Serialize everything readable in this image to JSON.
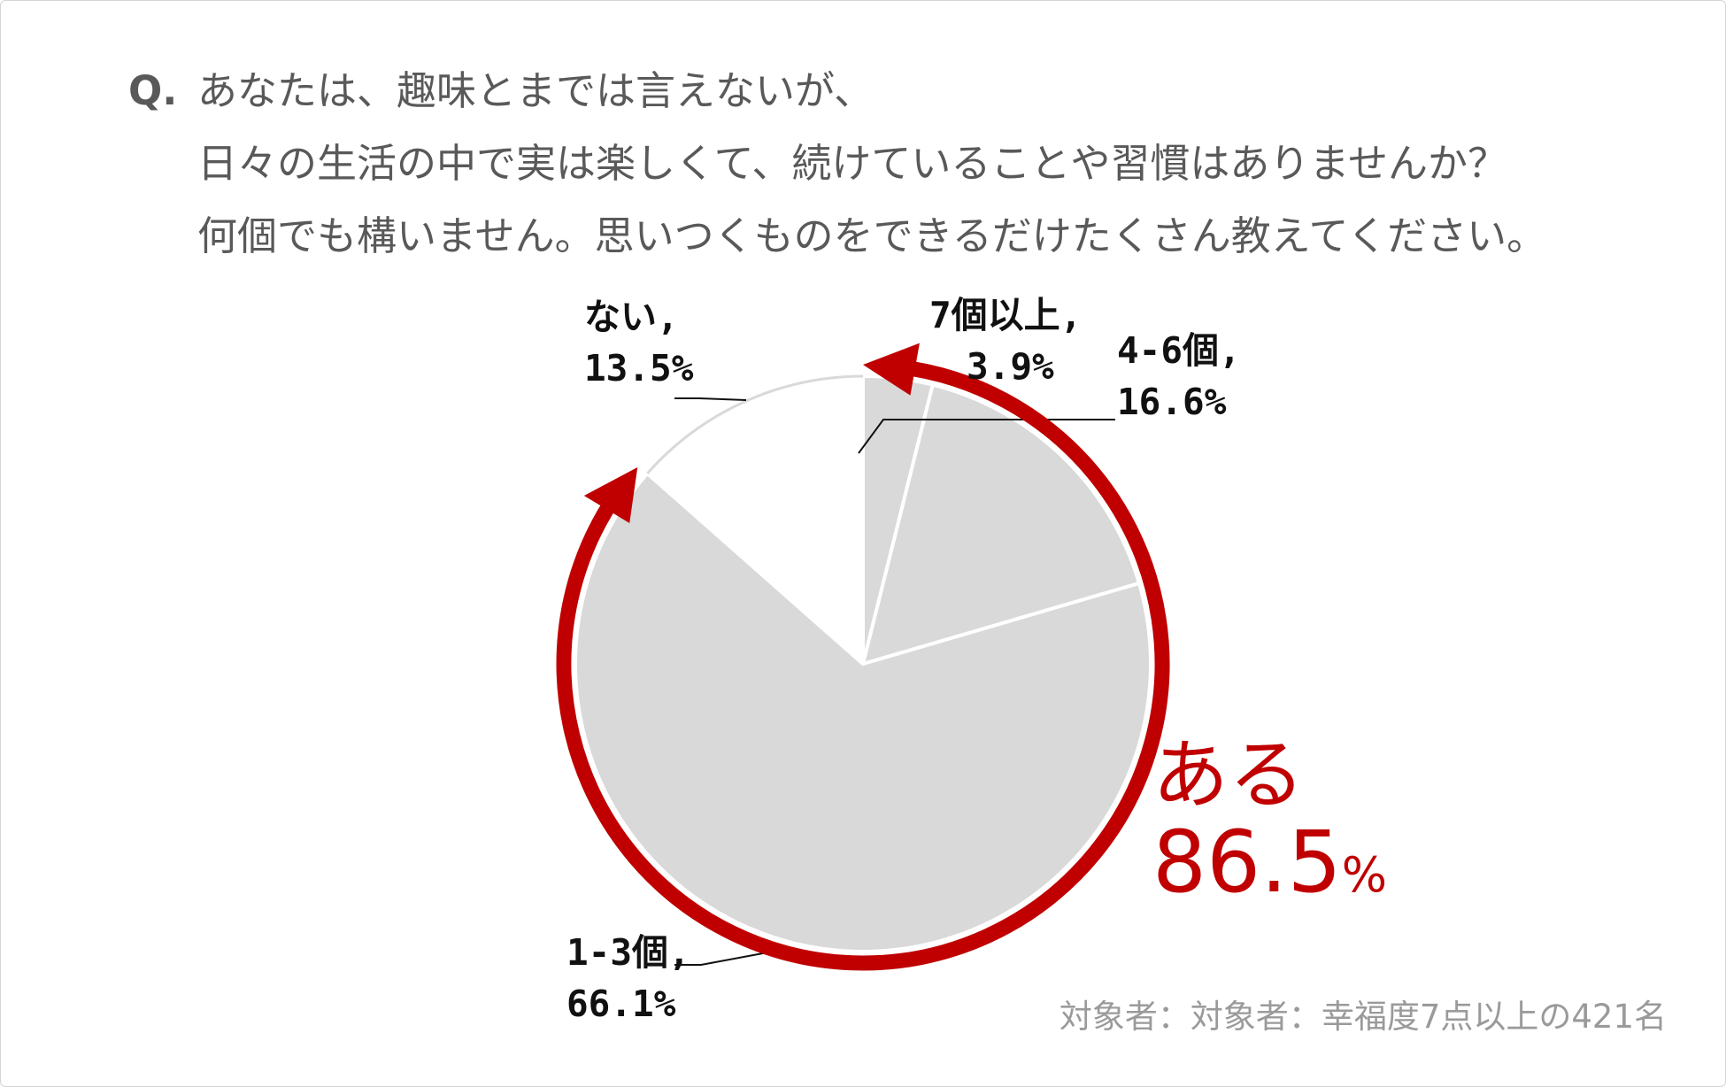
{
  "question": {
    "prefix": "Q.",
    "line1": "あなたは、趣味とまでは言えないが、",
    "line2": "日々の生活の中で実は楽しくて、続けていることや習慣はありませんか？",
    "line3": "何個でも構いません。思いつくものをできるだけたくさん教えてください。"
  },
  "source_note": "対象者：対象者：幸福度7点以上の421名",
  "colors": {
    "slice_gray": "#d9d9d9",
    "slice_white": "#ffffff",
    "accent_red": "#c00000",
    "question_text": "#595959"
  },
  "chart_data": {
    "type": "pie",
    "start": "top",
    "direction": "clockwise",
    "slices": [
      {
        "label": "7個以上,",
        "value": 3.9,
        "display": "3.9%",
        "fill": "#d9d9d9"
      },
      {
        "label": "4-6個,",
        "value": 16.6,
        "display": "16.6%",
        "fill": "#d9d9d9"
      },
      {
        "label": "1-3個,",
        "value": 66.1,
        "display": "66.1%",
        "fill": "#d9d9d9"
      },
      {
        "label": "ない,",
        "value": 13.5,
        "display": "13.5%",
        "fill": "#ffffff"
      }
    ],
    "highlight_group": {
      "name": "ある",
      "value": 86.5,
      "value_text": "86.5",
      "unit": "%",
      "includes": [
        "7個以上,",
        "4-6個,",
        "1-3個,"
      ]
    }
  }
}
